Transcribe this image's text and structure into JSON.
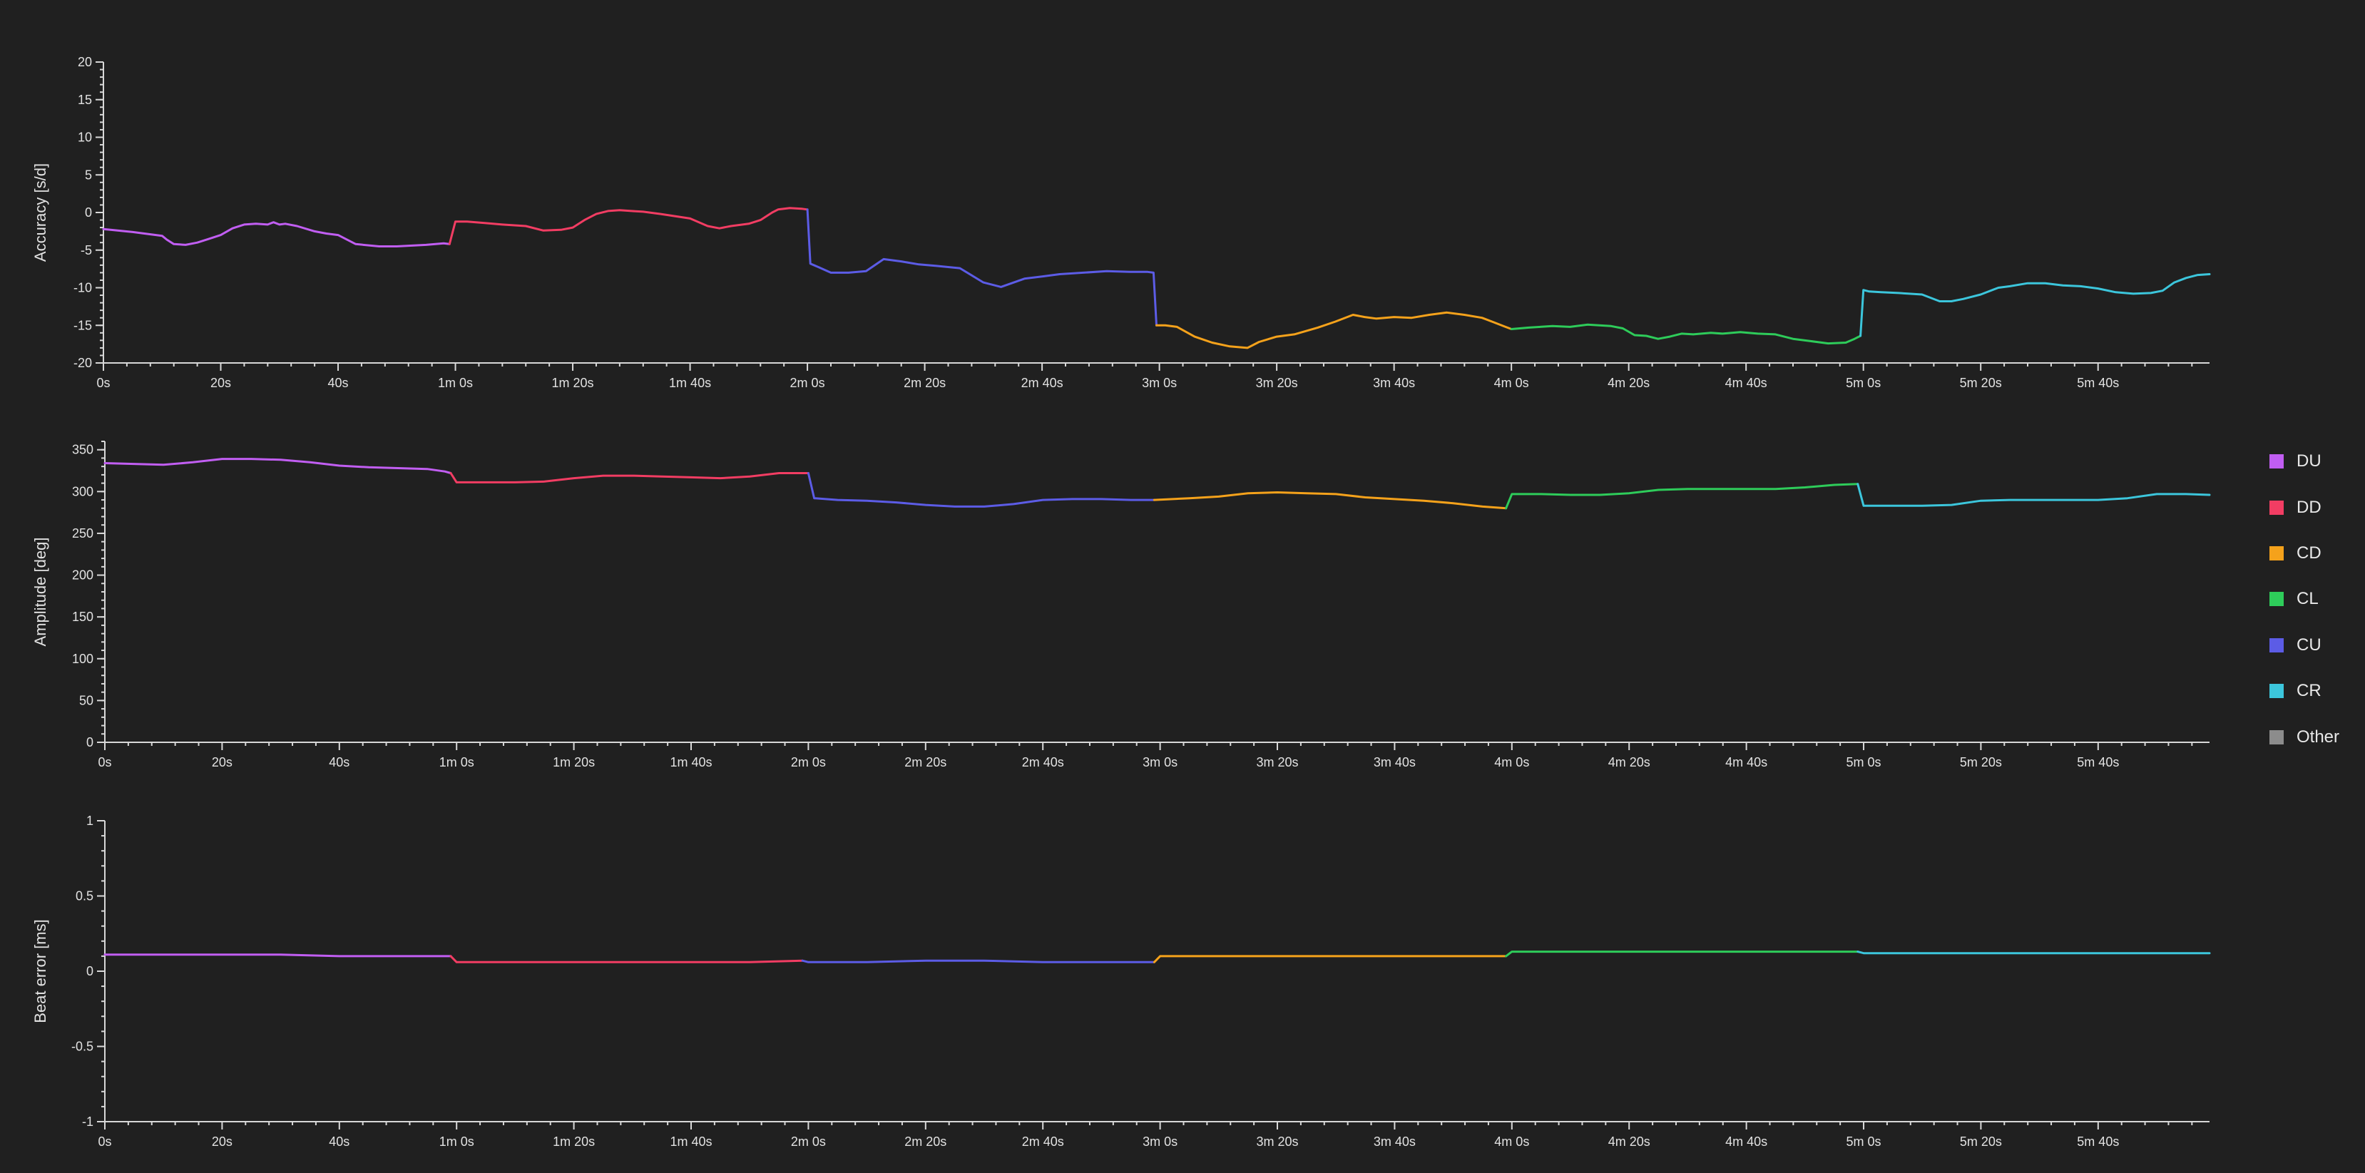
{
  "chart_data": [
    {
      "type": "line",
      "ylabel": "Accuracy [s/d]",
      "xlabel": "",
      "xlim": [
        0,
        359
      ],
      "ylim": [
        -20,
        20
      ],
      "yticks": [
        20,
        15,
        10,
        5,
        0,
        -5,
        -10,
        -15,
        -20
      ],
      "ytick_labels": [
        "20",
        "15",
        "10",
        "5",
        "0",
        "-5",
        "-10",
        "-15",
        "-20"
      ],
      "xtick_labels": [
        "0s",
        "20s",
        "40s",
        "1m 0s",
        "1m 20s",
        "1m 40s",
        "2m 0s",
        "2m 20s",
        "2m 40s",
        "3m 0s",
        "3m 20s",
        "3m 40s",
        "4m 0s",
        "4m 20s",
        "4m 40s",
        "5m 0s",
        "5m 20s",
        "5m 40s"
      ],
      "series": [
        {
          "name": "DU",
          "color": "#c15ef2",
          "x": [
            0,
            5,
            10,
            10.8,
            12,
            14,
            16,
            18,
            20,
            22,
            24,
            26,
            28,
            29,
            30,
            31,
            33,
            36,
            38,
            40,
            43,
            47,
            50,
            55,
            58,
            59
          ],
          "y": [
            -2.2,
            -2.6,
            -3.1,
            -3.6,
            -4.2,
            -4.3,
            -4.0,
            -3.5,
            -3.0,
            -2.1,
            -1.6,
            -1.5,
            -1.6,
            -1.3,
            -1.6,
            -1.5,
            -1.8,
            -2.5,
            -2.8,
            -3.0,
            -4.2,
            -4.5,
            -4.5,
            -4.3,
            -4.1,
            -4.2
          ]
        },
        {
          "name": "DD",
          "color": "#f23d63",
          "x": [
            59,
            60,
            62,
            65,
            68,
            72,
            75,
            78,
            80,
            82,
            84,
            86,
            88,
            90,
            92,
            95,
            100,
            103,
            105,
            107,
            110,
            112,
            114,
            115,
            117,
            119,
            120
          ],
          "y": [
            -4.2,
            -1.2,
            -1.2,
            -1.4,
            -1.6,
            -1.8,
            -2.4,
            -2.3,
            -2.0,
            -1.0,
            -0.2,
            0.2,
            0.3,
            0.2,
            0.1,
            -0.2,
            -0.8,
            -1.8,
            -2.1,
            -1.8,
            -1.5,
            -1.0,
            0.0,
            0.4,
            0.6,
            0.5,
            0.4
          ]
        },
        {
          "name": "CU",
          "color": "#5c5ce6",
          "x": [
            120,
            120.5,
            122,
            124,
            127,
            130,
            133,
            136,
            139,
            142,
            146,
            150,
            153,
            157,
            160,
            163,
            167,
            171,
            175,
            178,
            179,
            179.5
          ],
          "y": [
            0.4,
            -6.8,
            -7.3,
            -8.0,
            -8.0,
            -7.8,
            -6.2,
            -6.5,
            -6.9,
            -7.1,
            -7.4,
            -9.3,
            -9.9,
            -8.8,
            -8.5,
            -8.2,
            -8.0,
            -7.8,
            -7.9,
            -7.9,
            -8.0,
            -15.0
          ]
        },
        {
          "name": "CD",
          "color": "#f5a21b",
          "x": [
            179.5,
            181,
            183,
            186,
            189,
            192,
            195,
            197,
            200,
            203,
            207,
            210,
            213,
            215,
            217,
            220,
            223,
            226,
            229,
            232,
            235,
            237,
            239,
            240
          ],
          "y": [
            -15.0,
            -15.0,
            -15.2,
            -16.5,
            -17.3,
            -17.8,
            -18.0,
            -17.2,
            -16.5,
            -16.2,
            -15.3,
            -14.5,
            -13.6,
            -13.9,
            -14.1,
            -13.9,
            -14.0,
            -13.6,
            -13.3,
            -13.6,
            -14.0,
            -14.6,
            -15.2,
            -15.5
          ]
        },
        {
          "name": "CL",
          "color": "#2ecc5a",
          "x": [
            240,
            243,
            247,
            250,
            253,
            255,
            257,
            259,
            261,
            263,
            265,
            267,
            269,
            271,
            274,
            276,
            279,
            282,
            285,
            288,
            291,
            294,
            297,
            298.5,
            299.5
          ],
          "y": [
            -15.5,
            -15.3,
            -15.1,
            -15.2,
            -14.9,
            -15.0,
            -15.1,
            -15.4,
            -16.3,
            -16.4,
            -16.8,
            -16.5,
            -16.1,
            -16.2,
            -16.0,
            -16.1,
            -15.9,
            -16.1,
            -16.2,
            -16.8,
            -17.1,
            -17.4,
            -17.3,
            -16.8,
            -16.4
          ]
        },
        {
          "name": "CR",
          "color": "#3cc6dc",
          "x": [
            299.5,
            300,
            301,
            303,
            306,
            310,
            313,
            315,
            317,
            320,
            323,
            325,
            328,
            331,
            334,
            337,
            340,
            343,
            346,
            349,
            351,
            353,
            355,
            357,
            359
          ],
          "y": [
            -16.4,
            -10.3,
            -10.5,
            -10.6,
            -10.7,
            -10.9,
            -11.8,
            -11.8,
            -11.5,
            -10.9,
            -10.0,
            -9.8,
            -9.4,
            -9.4,
            -9.7,
            -9.8,
            -10.1,
            -10.6,
            -10.8,
            -10.7,
            -10.4,
            -9.3,
            -8.7,
            -8.3,
            -8.2
          ]
        },
        {
          "name": "Other",
          "color": "#8c8c8c",
          "x": [],
          "y": []
        }
      ]
    },
    {
      "type": "line",
      "ylabel": "Amplitude [deg]",
      "xlabel": "",
      "xlim": [
        0,
        359
      ],
      "ylim": [
        0,
        360
      ],
      "yticks": [
        0,
        50,
        100,
        150,
        200,
        250,
        300,
        350
      ],
      "ytick_labels": [
        "0",
        "50",
        "100",
        "150",
        "200",
        "250",
        "300",
        "350"
      ],
      "xtick_labels": [
        "0s",
        "20s",
        "40s",
        "1m 0s",
        "1m 20s",
        "1m 40s",
        "2m 0s",
        "2m 20s",
        "2m 40s",
        "3m 0s",
        "3m 20s",
        "3m 40s",
        "4m 0s",
        "4m 20s",
        "4m 40s",
        "5m 0s",
        "5m 20s",
        "5m 40s"
      ],
      "series": [
        {
          "name": "DU",
          "color": "#c15ef2",
          "x": [
            0,
            5,
            10,
            15,
            20,
            25,
            30,
            35,
            40,
            45,
            50,
            55,
            58,
            59
          ],
          "y": [
            334,
            333,
            332,
            335,
            339,
            339,
            338,
            335,
            331,
            329,
            328,
            327,
            324,
            322
          ]
        },
        {
          "name": "DD",
          "color": "#f23d63",
          "x": [
            59,
            60,
            65,
            70,
            75,
            80,
            85,
            90,
            95,
            100,
            105,
            110,
            115,
            119,
            120
          ],
          "y": [
            322,
            311,
            311,
            311,
            312,
            316,
            319,
            319,
            318,
            317,
            316,
            318,
            322,
            322,
            322
          ]
        },
        {
          "name": "CU",
          "color": "#5c5ce6",
          "x": [
            120,
            121,
            125,
            130,
            135,
            140,
            145,
            150,
            155,
            160,
            165,
            170,
            175,
            179
          ],
          "y": [
            322,
            292,
            290,
            289,
            287,
            284,
            282,
            282,
            285,
            290,
            291,
            291,
            290,
            290
          ]
        },
        {
          "name": "CD",
          "color": "#f5a21b",
          "x": [
            179,
            185,
            190,
            195,
            200,
            205,
            210,
            215,
            220,
            225,
            230,
            235,
            239
          ],
          "y": [
            290,
            292,
            294,
            298,
            299,
            298,
            297,
            293,
            291,
            289,
            286,
            282,
            280
          ]
        },
        {
          "name": "CL",
          "color": "#2ecc5a",
          "x": [
            239,
            240,
            245,
            250,
            255,
            260,
            265,
            270,
            275,
            280,
            285,
            290,
            295,
            299
          ],
          "y": [
            280,
            297,
            297,
            296,
            296,
            298,
            302,
            303,
            303,
            303,
            303,
            305,
            308,
            309
          ]
        },
        {
          "name": "CR",
          "color": "#3cc6dc",
          "x": [
            299,
            300,
            305,
            310,
            315,
            320,
            325,
            330,
            335,
            340,
            345,
            350,
            355,
            359
          ],
          "y": [
            309,
            283,
            283,
            283,
            284,
            289,
            290,
            290,
            290,
            290,
            292,
            297,
            297,
            296
          ]
        },
        {
          "name": "Other",
          "color": "#8c8c8c",
          "x": [],
          "y": []
        }
      ]
    },
    {
      "type": "line",
      "ylabel": "Beat error [ms]",
      "xlabel": "",
      "xlim": [
        0,
        359
      ],
      "ylim": [
        -1,
        1
      ],
      "yticks": [
        1,
        0.5,
        0,
        -0.5,
        -1
      ],
      "ytick_labels": [
        "1",
        "0.5",
        "0",
        "-0.5",
        "-1"
      ],
      "xtick_labels": [
        "0s",
        "20s",
        "40s",
        "1m 0s",
        "1m 20s",
        "1m 40s",
        "2m 0s",
        "2m 20s",
        "2m 40s",
        "3m 0s",
        "3m 20s",
        "3m 40s",
        "4m 0s",
        "4m 20s",
        "4m 40s",
        "5m 0s",
        "5m 20s",
        "5m 40s"
      ],
      "series": [
        {
          "name": "DU",
          "color": "#c15ef2",
          "x": [
            0,
            10,
            20,
            30,
            40,
            50,
            59
          ],
          "y": [
            0.11,
            0.11,
            0.11,
            0.11,
            0.1,
            0.1,
            0.1
          ]
        },
        {
          "name": "DD",
          "color": "#f23d63",
          "x": [
            59,
            60,
            70,
            80,
            90,
            100,
            110,
            119
          ],
          "y": [
            0.1,
            0.06,
            0.06,
            0.06,
            0.06,
            0.06,
            0.06,
            0.07
          ]
        },
        {
          "name": "CU",
          "color": "#5c5ce6",
          "x": [
            119,
            120,
            130,
            140,
            150,
            160,
            170,
            179
          ],
          "y": [
            0.07,
            0.06,
            0.06,
            0.07,
            0.07,
            0.06,
            0.06,
            0.06
          ]
        },
        {
          "name": "CD",
          "color": "#f5a21b",
          "x": [
            179,
            180,
            190,
            200,
            210,
            220,
            230,
            239
          ],
          "y": [
            0.06,
            0.1,
            0.1,
            0.1,
            0.1,
            0.1,
            0.1,
            0.1
          ]
        },
        {
          "name": "CL",
          "color": "#2ecc5a",
          "x": [
            239,
            240,
            250,
            260,
            270,
            280,
            290,
            299
          ],
          "y": [
            0.1,
            0.13,
            0.13,
            0.13,
            0.13,
            0.13,
            0.13,
            0.13
          ]
        },
        {
          "name": "CR",
          "color": "#3cc6dc",
          "x": [
            299,
            300,
            310,
            320,
            330,
            340,
            350,
            359
          ],
          "y": [
            0.13,
            0.12,
            0.12,
            0.12,
            0.12,
            0.12,
            0.12,
            0.12
          ]
        },
        {
          "name": "Other",
          "color": "#8c8c8c",
          "x": [],
          "y": []
        }
      ]
    }
  ],
  "legend": {
    "position": "right",
    "items": [
      {
        "label": "DU",
        "color": "#c15ef2"
      },
      {
        "label": "DD",
        "color": "#f23d63"
      },
      {
        "label": "CD",
        "color": "#f5a21b"
      },
      {
        "label": "CL",
        "color": "#2ecc5a"
      },
      {
        "label": "CU",
        "color": "#5c5ce6"
      },
      {
        "label": "CR",
        "color": "#3cc6dc"
      },
      {
        "label": "Other",
        "color": "#8c8c8c"
      }
    ]
  }
}
